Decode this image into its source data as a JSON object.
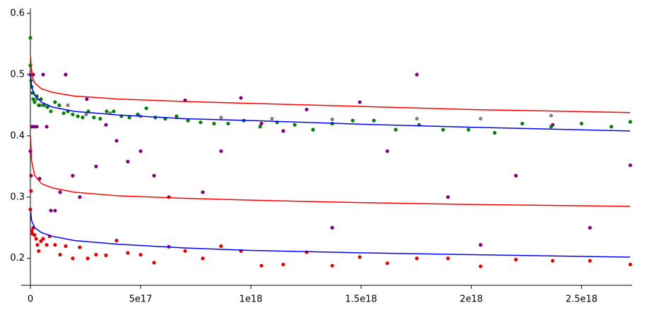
{
  "chart_data": {
    "type": "scatter",
    "xlim": [
      0,
      2.73e+18
    ],
    "ylim": [
      0.156,
      0.608
    ],
    "xticks": [
      0,
      {
        "value": 5e+17,
        "label": "5e17"
      },
      {
        "value": 1e+18,
        "label": "1e18"
      },
      {
        "value": 1.5e+18,
        "label": "1.5e18"
      },
      {
        "value": 2e+18,
        "label": "2e18"
      },
      {
        "value": 2.5e+18,
        "label": "2.5e18"
      }
    ],
    "yticks": [
      0.2,
      0.3,
      0.4,
      0.5,
      0.6
    ],
    "series": [
      {
        "style": "points",
        "color": "#e00000",
        "x": [
          0,
          3000000000000000.0,
          6000000000000000.0,
          1e+16,
          1.3e+16,
          1.9e+16,
          2.6e+16,
          3.2e+16,
          3.8e+16,
          4.8e+16,
          5.8e+16,
          7.4e+16,
          8.7e+16,
          1.12e+17,
          1.35e+17,
          1.6e+17,
          1.92e+17,
          2.24e+17,
          2.6e+17,
          2.98e+17,
          3.43e+17,
          3.91e+17,
          4.42e+17,
          5e+17,
          5.61e+17,
          6.28e+17,
          7.02e+17,
          7.82e+17,
          8.65e+17,
          9.55e+17,
          1.048e+18,
          1.147e+18,
          1.253e+18,
          1.369e+18,
          1.494e+18,
          1.619e+18,
          1.753e+18,
          1.894e+18,
          2.042e+18,
          2.202e+18,
          2.369e+18,
          2.538e+18,
          2.721e+18
        ],
        "values": [
          0.28,
          0.31,
          0.245,
          0.24,
          0.25,
          0.238,
          0.232,
          0.222,
          0.212,
          0.228,
          0.232,
          0.222,
          0.236,
          0.222,
          0.206,
          0.22,
          0.2,
          0.218,
          0.2,
          0.206,
          0.205,
          0.229,
          0.209,
          0.206,
          0.193,
          0.219,
          0.212,
          0.2,
          0.22,
          0.212,
          0.188,
          0.19,
          0.21,
          0.188,
          0.202,
          0.192,
          0.2,
          0.2,
          0.187,
          0.198,
          0.196,
          0.196,
          0.19
        ]
      },
      {
        "style": "points",
        "color": "#800080",
        "x": [
          0,
          0,
          3000000000000000.0,
          6000000000000000.0,
          1.3e+16,
          1.6e+16,
          2.9e+16,
          4.2e+16,
          5.8e+16,
          7.4e+16,
          9.3e+16,
          1.12e+17,
          1.35e+17,
          1.6e+17,
          1.92e+17,
          2.24e+17,
          2.56e+17,
          2.98e+17,
          3.43e+17,
          3.91e+17,
          4.42e+17,
          5e+17,
          5.61e+17,
          6.28e+17,
          7.02e+17,
          7.82e+17,
          8.65e+17,
          9.55e+17,
          1.048e+18,
          1.147e+18,
          1.253e+18,
          1.369e+18,
          1.494e+18,
          1.619e+18,
          1.753e+18,
          1.894e+18,
          2.042e+18,
          2.202e+18,
          2.369e+18,
          2.538e+18,
          2.721e+18
        ],
        "values": [
          0.5,
          0.375,
          0.335,
          0.415,
          0.5,
          0.415,
          0.415,
          0.33,
          0.5,
          0.415,
          0.278,
          0.278,
          0.308,
          0.5,
          0.335,
          0.3,
          0.46,
          0.35,
          0.418,
          0.392,
          0.358,
          0.375,
          0.335,
          0.3,
          0.458,
          0.308,
          0.375,
          0.462,
          0.42,
          0.408,
          0.443,
          0.25,
          0.455,
          0.375,
          0.5,
          0.3,
          0.222,
          0.335,
          0.418,
          0.25,
          0.352
        ]
      },
      {
        "style": "points",
        "color": "#808080",
        "x": [
          3000000000000000.0,
          1.3e+16,
          2.9e+16,
          4.8e+16,
          8e+16,
          1.12e+17,
          1.7e+17,
          2.53e+17,
          3.62e+17,
          5e+17,
          6.63e+17,
          8.65e+17,
          1.096e+18,
          1.369e+18,
          1.753e+18,
          2.042e+18,
          2.362e+18
        ],
        "values": [
          0.505,
          0.47,
          0.46,
          0.45,
          0.448,
          0.455,
          0.45,
          0.435,
          0.437,
          0.432,
          0.43,
          0.43,
          0.428,
          0.427,
          0.428,
          0.428,
          0.433
        ]
      },
      {
        "style": "points",
        "color": "#008000",
        "x": [
          0,
          0,
          3000000000000000.0,
          6000000000000000.0,
          1e+16,
          1.3e+16,
          1.9e+16,
          2.9e+16,
          3.8e+16,
          4.8e+16,
          6.1e+16,
          7.7e+16,
          9.3e+16,
          1.12e+17,
          1.31e+17,
          1.51e+17,
          1.7e+17,
          1.92e+17,
          2.15e+17,
          2.37e+17,
          2.63e+17,
          2.88e+17,
          3.17e+17,
          3.46e+17,
          3.78e+17,
          4.13e+17,
          4.49e+17,
          4.87e+17,
          5.26e+17,
          5.67e+17,
          6.12e+17,
          6.63e+17,
          7.15e+17,
          7.72e+17,
          8.33e+17,
          8.97e+17,
          9.68e+17,
          1.042e+18,
          1.119e+18,
          1.199e+18,
          1.282e+18,
          1.369e+18,
          1.462e+18,
          1.558e+18,
          1.657e+18,
          1.763e+18,
          1.872e+18,
          1.987e+18,
          2.106e+18,
          2.231e+18,
          2.362e+18,
          2.5e+18,
          2.635e+18,
          2.721e+18
        ],
        "values": [
          0.56,
          0.515,
          0.49,
          0.48,
          0.47,
          0.46,
          0.455,
          0.465,
          0.45,
          0.46,
          0.45,
          0.447,
          0.44,
          0.455,
          0.45,
          0.437,
          0.44,
          0.435,
          0.432,
          0.43,
          0.44,
          0.43,
          0.428,
          0.44,
          0.44,
          0.432,
          0.43,
          0.435,
          0.445,
          0.43,
          0.428,
          0.432,
          0.425,
          0.422,
          0.42,
          0.42,
          0.425,
          0.415,
          0.422,
          0.418,
          0.41,
          0.42,
          0.425,
          0.425,
          0.41,
          0.418,
          0.41,
          0.41,
          0.405,
          0.42,
          0.415,
          0.42,
          0.415,
          0.423
        ]
      },
      {
        "style": "line",
        "color": "#ff0000",
        "x": [
          1000000000000000.0,
          5000000000000000.0,
          2e+16,
          5e+16,
          1e+17,
          2e+17,
          4e+17,
          7e+17,
          1e+18,
          1.5e+18,
          2e+18,
          2.72e+18
        ],
        "values": [
          0.53,
          0.5,
          0.486,
          0.477,
          0.471,
          0.465,
          0.46,
          0.456,
          0.453,
          0.448,
          0.443,
          0.438
        ]
      },
      {
        "style": "line",
        "color": "#0000ff",
        "x": [
          1000000000000000.0,
          5000000000000000.0,
          2e+16,
          5e+16,
          1e+17,
          2e+17,
          4e+17,
          7e+17,
          1e+18,
          1.5e+18,
          2e+18,
          2.72e+18
        ],
        "values": [
          0.5,
          0.48,
          0.466,
          0.455,
          0.447,
          0.44,
          0.434,
          0.428,
          0.425,
          0.419,
          0.414,
          0.408
        ]
      },
      {
        "style": "line",
        "color": "#ff0000",
        "x": [
          1000000000000000.0,
          5000000000000000.0,
          2e+16,
          5e+16,
          1e+17,
          2e+17,
          4e+17,
          7e+17,
          1e+18,
          1.5e+18,
          2e+18,
          2.72e+18
        ],
        "values": [
          0.4,
          0.36,
          0.335,
          0.322,
          0.315,
          0.308,
          0.302,
          0.298,
          0.295,
          0.291,
          0.288,
          0.285
        ]
      },
      {
        "style": "line",
        "color": "#0000ff",
        "x": [
          1000000000000000.0,
          5000000000000000.0,
          2e+16,
          5e+16,
          1e+17,
          2e+17,
          4e+17,
          7e+17,
          1e+18,
          1.5e+18,
          2e+18,
          2.72e+18
        ],
        "values": [
          0.28,
          0.262,
          0.25,
          0.242,
          0.236,
          0.229,
          0.223,
          0.217,
          0.213,
          0.209,
          0.206,
          0.202
        ]
      }
    ]
  }
}
